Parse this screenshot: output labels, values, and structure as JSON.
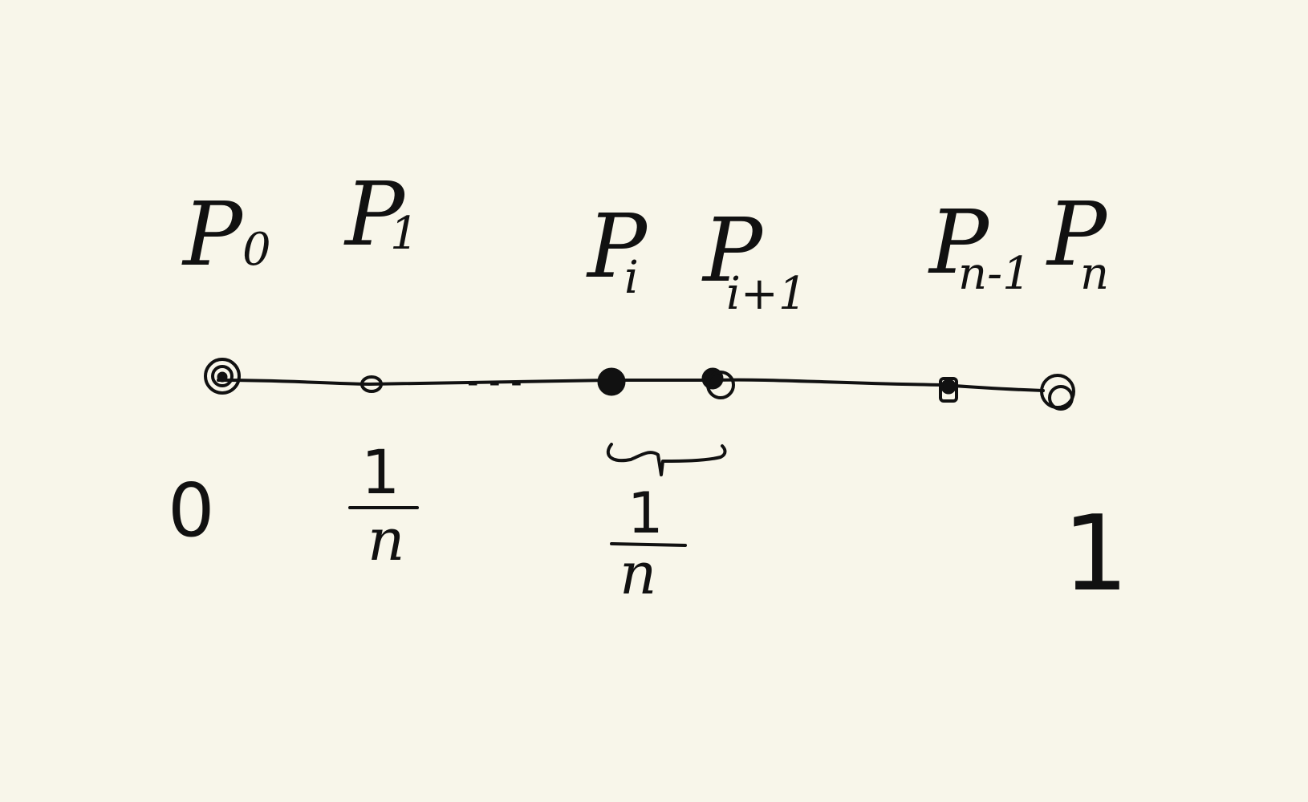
{
  "diagram": {
    "points": [
      {
        "letter": "P",
        "sub": "0"
      },
      {
        "letter": "P",
        "sub": "1"
      },
      {
        "letter": "P",
        "sub": "i"
      },
      {
        "letter": "P",
        "sub": "i+1"
      },
      {
        "letter": "P",
        "sub": "n-1"
      },
      {
        "letter": "P",
        "sub": "n"
      }
    ],
    "ellipsis": "- - -",
    "below": {
      "zero": "0",
      "one_over_n": {
        "num": "1",
        "den": "n"
      },
      "gap": {
        "num": "1",
        "den": "n"
      },
      "one": "1"
    }
  }
}
